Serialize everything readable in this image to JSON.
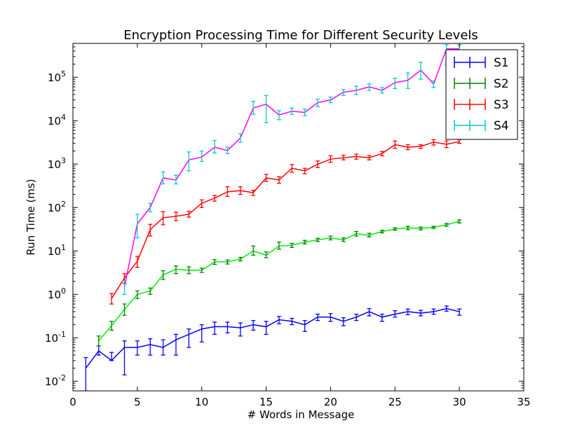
{
  "chart_data": {
    "type": "line",
    "title": "Encryption Processing Time for Different Security Levels",
    "xlabel": "# Words in Message",
    "ylabel": "Run Time (ms)",
    "xlim": [
      0,
      35
    ],
    "ylim": [
      0.006,
      600000
    ],
    "yscale": "log",
    "xticks": [
      0,
      5,
      10,
      15,
      20,
      25,
      30,
      35
    ],
    "yticks": [
      {
        "value": 0.01,
        "base": "10",
        "exp": "-2"
      },
      {
        "value": 0.1,
        "base": "10",
        "exp": "-1"
      },
      {
        "value": 1,
        "base": "10",
        "exp": "0"
      },
      {
        "value": 10,
        "base": "10",
        "exp": "1"
      },
      {
        "value": 100,
        "base": "10",
        "exp": "2"
      },
      {
        "value": 1000,
        "base": "10",
        "exp": "3"
      },
      {
        "value": 10000,
        "base": "10",
        "exp": "4"
      },
      {
        "value": 100000,
        "base": "10",
        "exp": "5"
      }
    ],
    "grid": false,
    "legend_position": "top-right",
    "series": [
      {
        "name": "S1",
        "color": "#0000ff",
        "errorbar_color": "#0000ff",
        "x": [
          1,
          2,
          3,
          4,
          5,
          6,
          7,
          8,
          9,
          10,
          11,
          12,
          13,
          14,
          15,
          16,
          17,
          18,
          19,
          20,
          21,
          22,
          23,
          24,
          25,
          26,
          27,
          28,
          29,
          30
        ],
        "y": [
          0.02,
          0.05,
          0.03,
          0.06,
          0.06,
          0.07,
          0.06,
          0.09,
          0.12,
          0.16,
          0.18,
          0.18,
          0.17,
          0.2,
          0.18,
          0.26,
          0.24,
          0.2,
          0.3,
          0.3,
          0.24,
          0.3,
          0.4,
          0.3,
          0.35,
          0.4,
          0.37,
          0.4,
          0.47,
          0.4
        ],
        "err_low": [
          0.004,
          0.04,
          0.03,
          0.014,
          0.04,
          0.04,
          0.04,
          0.04,
          0.06,
          0.08,
          0.12,
          0.13,
          0.11,
          0.15,
          0.12,
          0.21,
          0.2,
          0.14,
          0.25,
          0.24,
          0.19,
          0.25,
          0.32,
          0.24,
          0.3,
          0.34,
          0.32,
          0.35,
          0.41,
          0.33
        ],
        "err_high": [
          0.035,
          0.065,
          0.046,
          0.085,
          0.085,
          0.095,
          0.09,
          0.12,
          0.16,
          0.2,
          0.23,
          0.23,
          0.22,
          0.25,
          0.24,
          0.31,
          0.28,
          0.25,
          0.35,
          0.36,
          0.29,
          0.35,
          0.47,
          0.35,
          0.42,
          0.46,
          0.43,
          0.46,
          0.54,
          0.46
        ]
      },
      {
        "name": "S2",
        "color": "#00ee00",
        "errorbar_color": "#008000",
        "x": [
          2,
          3,
          4,
          5,
          6,
          7,
          8,
          9,
          10,
          11,
          12,
          13,
          14,
          15,
          16,
          17,
          18,
          19,
          20,
          21,
          22,
          23,
          24,
          25,
          26,
          27,
          28,
          29,
          30
        ],
        "y": [
          0.085,
          0.19,
          0.45,
          1.0,
          1.2,
          2.8,
          3.8,
          3.6,
          3.6,
          5.6,
          5.6,
          6.5,
          10,
          8,
          13,
          13.5,
          16,
          18,
          20,
          18,
          25,
          23,
          28,
          32,
          34,
          33,
          35,
          40,
          48
        ],
        "err_low": [
          0.065,
          0.15,
          0.33,
          0.8,
          1.0,
          2.2,
          3.0,
          3.0,
          3.2,
          4.9,
          5.0,
          5.9,
          8,
          7,
          11,
          12,
          14.5,
          16.5,
          18,
          16.5,
          22,
          21,
          26,
          30,
          31,
          30.5,
          33,
          37,
          44
        ],
        "err_high": [
          0.11,
          0.24,
          0.6,
          1.2,
          1.4,
          3.5,
          4.5,
          4.3,
          4.0,
          6.3,
          6.2,
          7.1,
          13,
          9.5,
          16,
          15,
          17.5,
          19.5,
          22,
          20,
          28,
          25.5,
          30,
          34,
          37,
          35.5,
          37,
          43,
          52
        ]
      },
      {
        "name": "S3",
        "color": "#ff0000",
        "errorbar_color": "#ff0000",
        "x": [
          3,
          4,
          5,
          6,
          7,
          8,
          9,
          10,
          11,
          12,
          13,
          14,
          15,
          16,
          17,
          18,
          19,
          20,
          21,
          22,
          23,
          24,
          25,
          26,
          27,
          28,
          29,
          30
        ],
        "y": [
          0.8,
          2.4,
          5.8,
          31,
          58,
          63,
          70,
          125,
          165,
          230,
          245,
          220,
          480,
          430,
          800,
          700,
          990,
          1300,
          1400,
          1500,
          1400,
          1750,
          2800,
          2450,
          2550,
          3200,
          2850,
          3300
        ],
        "err_low": [
          0.6,
          1.8,
          4.2,
          22,
          40,
          50,
          60,
          100,
          140,
          180,
          200,
          190,
          400,
          360,
          650,
          600,
          830,
          1100,
          1250,
          1300,
          1250,
          1550,
          2300,
          2150,
          2300,
          2750,
          2400,
          3000
        ],
        "err_high": [
          1.05,
          3.0,
          7.5,
          41,
          80,
          78,
          82,
          150,
          190,
          300,
          300,
          250,
          580,
          510,
          980,
          800,
          1180,
          1550,
          1600,
          1700,
          1580,
          1950,
          3400,
          2800,
          2800,
          3650,
          3400,
          3650
        ]
      },
      {
        "name": "S4",
        "color": "#ff00ff",
        "errorbar_color": "#00cccc",
        "x": [
          4,
          5,
          6,
          7,
          8,
          9,
          10,
          11,
          12,
          13,
          14,
          15,
          16,
          17,
          18,
          19,
          20,
          21,
          22,
          23,
          24,
          25,
          26,
          27,
          28,
          29,
          30
        ],
        "y": [
          1.5,
          42,
          100,
          480,
          430,
          1250,
          1450,
          2450,
          2050,
          4000,
          19500,
          24000,
          13500,
          16500,
          15500,
          26000,
          30000,
          45000,
          50000,
          60000,
          50000,
          75000,
          85000,
          145000,
          70000,
          450000,
          450000
        ],
        "err_low": [
          1.0,
          20,
          80,
          350,
          350,
          700,
          1150,
          1800,
          1750,
          3200,
          14000,
          9000,
          10500,
          14000,
          13000,
          21000,
          26000,
          38000,
          40000,
          50000,
          43000,
          55000,
          55000,
          90000,
          58000,
          200000,
          200000
        ],
        "err_high": [
          2.1,
          70,
          125,
          660,
          550,
          1900,
          2000,
          3500,
          2450,
          5000,
          28000,
          38000,
          17000,
          19500,
          18500,
          31000,
          35000,
          52000,
          62000,
          70000,
          58000,
          95000,
          125000,
          220000,
          82000,
          560000,
          560000
        ]
      }
    ]
  }
}
